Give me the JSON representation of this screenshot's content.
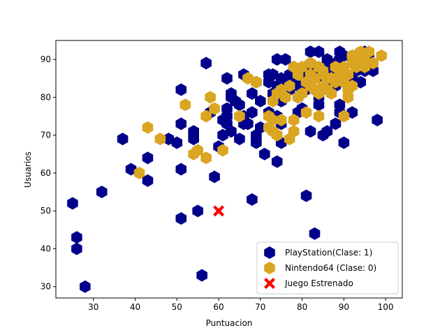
{
  "chart_data": {
    "type": "scatter",
    "xlabel": "Puntuacion",
    "ylabel": "Usuarios",
    "xlim": [
      21,
      104
    ],
    "ylim": [
      27,
      95
    ],
    "xticks": [
      30,
      40,
      50,
      60,
      70,
      80,
      90,
      100
    ],
    "yticks": [
      30,
      40,
      50,
      60,
      70,
      80,
      90
    ],
    "grid": false,
    "legend_position": "bottom-right",
    "series": [
      {
        "name": "PlayStation(Clase: 1)",
        "color": "#00008b",
        "marker": "hexagon",
        "points": [
          [
            25,
            52
          ],
          [
            26,
            43
          ],
          [
            26,
            40
          ],
          [
            28,
            30
          ],
          [
            32,
            55
          ],
          [
            37,
            69
          ],
          [
            39,
            61
          ],
          [
            43,
            64
          ],
          [
            43,
            58
          ],
          [
            48,
            69
          ],
          [
            50,
            68
          ],
          [
            51,
            82
          ],
          [
            51,
            73
          ],
          [
            51,
            61
          ],
          [
            51,
            48
          ],
          [
            54,
            71
          ],
          [
            54,
            70
          ],
          [
            54,
            69
          ],
          [
            55,
            50
          ],
          [
            56,
            33
          ],
          [
            57,
            89
          ],
          [
            58,
            76
          ],
          [
            59,
            59
          ],
          [
            60,
            67
          ],
          [
            61,
            70
          ],
          [
            61,
            74
          ],
          [
            62,
            85
          ],
          [
            62,
            77
          ],
          [
            62,
            75
          ],
          [
            62,
            73
          ],
          [
            63,
            81
          ],
          [
            63,
            80
          ],
          [
            63,
            71
          ],
          [
            64,
            79
          ],
          [
            65,
            69
          ],
          [
            65,
            78
          ],
          [
            66,
            86
          ],
          [
            66,
            75
          ],
          [
            66,
            73
          ],
          [
            67,
            73
          ],
          [
            68,
            81
          ],
          [
            68,
            76
          ],
          [
            68,
            53
          ],
          [
            69,
            84
          ],
          [
            69,
            70
          ],
          [
            69,
            69
          ],
          [
            69,
            68
          ],
          [
            70,
            79
          ],
          [
            70,
            72
          ],
          [
            71,
            65
          ],
          [
            72,
            86
          ],
          [
            72,
            84
          ],
          [
            72,
            76
          ],
          [
            73,
            81
          ],
          [
            73,
            86
          ],
          [
            74,
            90
          ],
          [
            74,
            83
          ],
          [
            74,
            75
          ],
          [
            74,
            63
          ],
          [
            75,
            85
          ],
          [
            75,
            79
          ],
          [
            75,
            73
          ],
          [
            75,
            68
          ],
          [
            76,
            90
          ],
          [
            76,
            84
          ],
          [
            76,
            81
          ],
          [
            76,
            80
          ],
          [
            77,
            86
          ],
          [
            77,
            82
          ],
          [
            78,
            88
          ],
          [
            78,
            85
          ],
          [
            78,
            84
          ],
          [
            79,
            83
          ],
          [
            79,
            80
          ],
          [
            79,
            76
          ],
          [
            80,
            86
          ],
          [
            80,
            83
          ],
          [
            80,
            77
          ],
          [
            81,
            88
          ],
          [
            81,
            84
          ],
          [
            81,
            82
          ],
          [
            81,
            54
          ],
          [
            82,
            92
          ],
          [
            82,
            71
          ],
          [
            82,
            85
          ],
          [
            83,
            44
          ],
          [
            83,
            88
          ],
          [
            83,
            82
          ],
          [
            84,
            92
          ],
          [
            84,
            78
          ],
          [
            84,
            80
          ],
          [
            84,
            86
          ],
          [
            85,
            84
          ],
          [
            85,
            70
          ],
          [
            86,
            90
          ],
          [
            86,
            71
          ],
          [
            86,
            88
          ],
          [
            87,
            86
          ],
          [
            87,
            84
          ],
          [
            88,
            83
          ],
          [
            88,
            73
          ],
          [
            88,
            89
          ],
          [
            89,
            92
          ],
          [
            89,
            90
          ],
          [
            89,
            76
          ],
          [
            89,
            78
          ],
          [
            90,
            68
          ],
          [
            90,
            84
          ],
          [
            90,
            86
          ],
          [
            90,
            91
          ],
          [
            91,
            86
          ],
          [
            91,
            83
          ],
          [
            92,
            76
          ],
          [
            92,
            85
          ],
          [
            93,
            89
          ],
          [
            93,
            87
          ],
          [
            93,
            91
          ],
          [
            94,
            88
          ],
          [
            94,
            84
          ],
          [
            95,
            92
          ],
          [
            95,
            90
          ],
          [
            95,
            87
          ],
          [
            96,
            91
          ],
          [
            96,
            88
          ],
          [
            97,
            87
          ],
          [
            98,
            74
          ]
        ]
      },
      {
        "name": "Nintendo64 (Clase: 0)",
        "color": "#daa520",
        "marker": "hexagon",
        "points": [
          [
            41,
            60
          ],
          [
            43,
            72
          ],
          [
            46,
            69
          ],
          [
            52,
            78
          ],
          [
            54,
            65
          ],
          [
            55,
            66
          ],
          [
            57,
            64
          ],
          [
            57,
            75
          ],
          [
            58,
            80
          ],
          [
            59,
            77
          ],
          [
            61,
            66
          ],
          [
            65,
            75
          ],
          [
            67,
            85
          ],
          [
            69,
            84
          ],
          [
            72,
            75
          ],
          [
            72,
            72
          ],
          [
            73,
            79
          ],
          [
            73,
            71
          ],
          [
            73,
            74
          ],
          [
            74,
            81
          ],
          [
            74,
            70
          ],
          [
            75,
            82
          ],
          [
            75,
            74
          ],
          [
            76,
            80
          ],
          [
            77,
            83
          ],
          [
            77,
            69
          ],
          [
            78,
            88
          ],
          [
            78,
            71
          ],
          [
            78,
            74
          ],
          [
            79,
            86
          ],
          [
            79,
            80
          ],
          [
            80,
            88
          ],
          [
            80,
            81
          ],
          [
            81,
            84
          ],
          [
            81,
            76
          ],
          [
            82,
            86
          ],
          [
            82,
            89
          ],
          [
            82,
            83
          ],
          [
            83,
            85
          ],
          [
            83,
            82
          ],
          [
            84,
            81
          ],
          [
            84,
            75
          ],
          [
            84,
            88
          ],
          [
            85,
            86
          ],
          [
            85,
            87
          ],
          [
            85,
            83
          ],
          [
            86,
            85
          ],
          [
            86,
            82
          ],
          [
            87,
            85
          ],
          [
            87,
            81
          ],
          [
            88,
            88
          ],
          [
            88,
            84
          ],
          [
            89,
            86
          ],
          [
            89,
            87
          ],
          [
            90,
            75
          ],
          [
            90,
            88
          ],
          [
            90,
            84
          ],
          [
            91,
            86
          ],
          [
            91,
            80
          ],
          [
            91,
            82
          ],
          [
            92,
            89
          ],
          [
            92,
            83
          ],
          [
            92,
            91
          ],
          [
            93,
            90
          ],
          [
            93,
            88
          ],
          [
            94,
            92
          ],
          [
            94,
            91
          ],
          [
            95,
            88
          ],
          [
            95,
            90
          ],
          [
            96,
            92
          ],
          [
            97,
            89
          ],
          [
            99,
            91
          ]
        ]
      },
      {
        "name": "Juego Estrenado",
        "color": "#ff0000",
        "marker": "x",
        "points": [
          [
            60,
            50
          ]
        ]
      }
    ]
  }
}
